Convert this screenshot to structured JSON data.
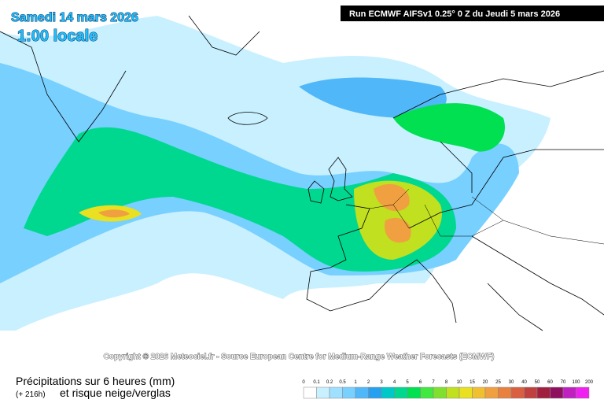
{
  "header": {
    "date": "Samedi 14 mars 2026",
    "time": "1:00 locale",
    "run": "Run ECMWF AIFSv1 0.25° 0 Z du Jeudi 5 mars 2026"
  },
  "copyright": "Copyright © 2026 Meteociel.fr - Source European Centre for Medium-Range Weather Forecasts (ECMWF)",
  "legend": {
    "title": "Précipitations sur 6 heures (mm)",
    "subtitle_lead": "(+ 216h)",
    "subtitle": "et risque neige/verglas",
    "labels": [
      "0",
      "0.1",
      "0.2",
      "0.5",
      "1",
      "2",
      "3",
      "4",
      "5",
      "6",
      "7",
      "8",
      "10",
      "15",
      "20",
      "25",
      "30",
      "40",
      "50",
      "60",
      "70",
      "100",
      "200"
    ],
    "colors": [
      "#ffffff",
      "#c8f0ff",
      "#a0e0ff",
      "#78d0ff",
      "#50b8f8",
      "#28a0f0",
      "#00c8c8",
      "#00d890",
      "#00e050",
      "#40e840",
      "#80e030",
      "#c0e020",
      "#e8e020",
      "#f0c030",
      "#f0a040",
      "#e88040",
      "#d86040",
      "#c04040",
      "#a02040",
      "#901060",
      "#c020c0",
      "#f020f0"
    ]
  }
}
